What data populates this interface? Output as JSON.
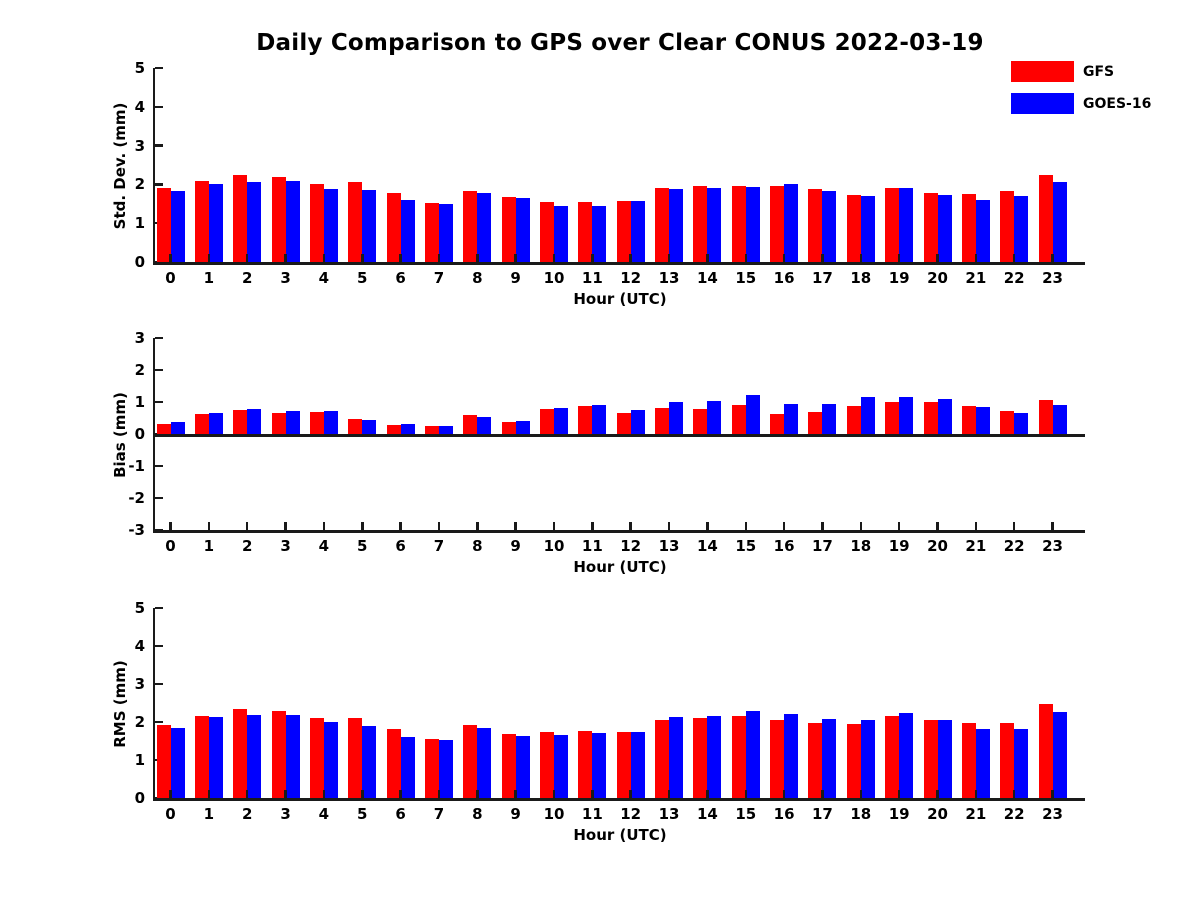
{
  "title": "Daily Comparison to GPS over Clear CONUS 2022-03-19",
  "legend": {
    "items": [
      {
        "label": "GFS",
        "color": "#ff0000"
      },
      {
        "label": "GOES-16",
        "color": "#0000ff"
      }
    ]
  },
  "chart_data": [
    {
      "type": "bar",
      "title": "",
      "ylabel": "Std. Dev. (mm)",
      "xlabel": "Hour (UTC)",
      "ylim": [
        0,
        5
      ],
      "yticks": [
        5,
        4,
        3,
        2,
        1,
        0
      ],
      "grid": false,
      "legend_position": "top-right-of-figure",
      "categories": [
        "0",
        "1",
        "2",
        "3",
        "4",
        "5",
        "6",
        "7",
        "8",
        "9",
        "10",
        "11",
        "12",
        "13",
        "14",
        "15",
        "16",
        "17",
        "18",
        "19",
        "20",
        "21",
        "22",
        "23"
      ],
      "series": [
        {
          "name": "GFS",
          "color": "#ff0000",
          "values": [
            1.92,
            2.1,
            2.23,
            2.18,
            2.01,
            2.05,
            1.79,
            1.53,
            1.84,
            1.68,
            1.55,
            1.55,
            1.58,
            1.91,
            1.96,
            1.97,
            1.97,
            1.88,
            1.73,
            1.92,
            1.78,
            1.75,
            1.82,
            2.24
          ]
        },
        {
          "name": "GOES-16",
          "color": "#0000ff",
          "values": [
            1.82,
            2.02,
            2.07,
            2.09,
            1.88,
            1.86,
            1.61,
            1.5,
            1.79,
            1.64,
            1.45,
            1.45,
            1.56,
            1.88,
            1.9,
            1.93,
            2.0,
            1.84,
            1.7,
            1.92,
            1.73,
            1.6,
            1.69,
            2.07
          ]
        }
      ]
    },
    {
      "type": "bar",
      "title": "",
      "ylabel": "Bias (mm)",
      "xlabel": "Hour (UTC)",
      "ylim": [
        -3,
        3
      ],
      "yticks": [
        3,
        2,
        1,
        0,
        -1,
        -2,
        -3
      ],
      "grid": false,
      "categories": [
        "0",
        "1",
        "2",
        "3",
        "4",
        "5",
        "6",
        "7",
        "8",
        "9",
        "10",
        "11",
        "12",
        "13",
        "14",
        "15",
        "16",
        "17",
        "18",
        "19",
        "20",
        "21",
        "22",
        "23"
      ],
      "series": [
        {
          "name": "GFS",
          "color": "#ff0000",
          "values": [
            0.3,
            0.62,
            0.75,
            0.67,
            0.68,
            0.48,
            0.27,
            0.24,
            0.59,
            0.39,
            0.78,
            0.88,
            0.65,
            0.81,
            0.78,
            0.9,
            0.62,
            0.68,
            0.89,
            1.0,
            1.0,
            0.87,
            0.72,
            1.06
          ]
        },
        {
          "name": "GOES-16",
          "color": "#0000ff",
          "values": [
            0.36,
            0.65,
            0.77,
            0.72,
            0.72,
            0.44,
            0.31,
            0.25,
            0.54,
            0.41,
            0.81,
            0.92,
            0.74,
            1.0,
            1.03,
            1.22,
            0.94,
            0.94,
            1.17,
            1.17,
            1.1,
            0.84,
            0.65,
            0.9
          ]
        }
      ]
    },
    {
      "type": "bar",
      "title": "",
      "ylabel": "RMS (mm)",
      "xlabel": "Hour (UTC)",
      "ylim": [
        0,
        5
      ],
      "yticks": [
        5,
        4,
        3,
        2,
        1,
        0
      ],
      "grid": false,
      "categories": [
        "0",
        "1",
        "2",
        "3",
        "4",
        "5",
        "6",
        "7",
        "8",
        "9",
        "10",
        "11",
        "12",
        "13",
        "14",
        "15",
        "16",
        "17",
        "18",
        "19",
        "20",
        "21",
        "22",
        "23"
      ],
      "series": [
        {
          "name": "GFS",
          "color": "#ff0000",
          "values": [
            1.92,
            2.17,
            2.33,
            2.28,
            2.1,
            2.1,
            1.81,
            1.55,
            1.93,
            1.69,
            1.73,
            1.76,
            1.73,
            2.06,
            2.1,
            2.15,
            2.06,
            1.97,
            1.95,
            2.17,
            2.04,
            1.97,
            1.97,
            2.47
          ]
        },
        {
          "name": "GOES-16",
          "color": "#0000ff",
          "values": [
            1.85,
            2.12,
            2.19,
            2.19,
            2.0,
            1.89,
            1.61,
            1.52,
            1.85,
            1.63,
            1.66,
            1.7,
            1.73,
            2.13,
            2.16,
            2.28,
            2.21,
            2.07,
            2.04,
            2.23,
            2.04,
            1.82,
            1.81,
            2.27
          ]
        }
      ]
    }
  ]
}
